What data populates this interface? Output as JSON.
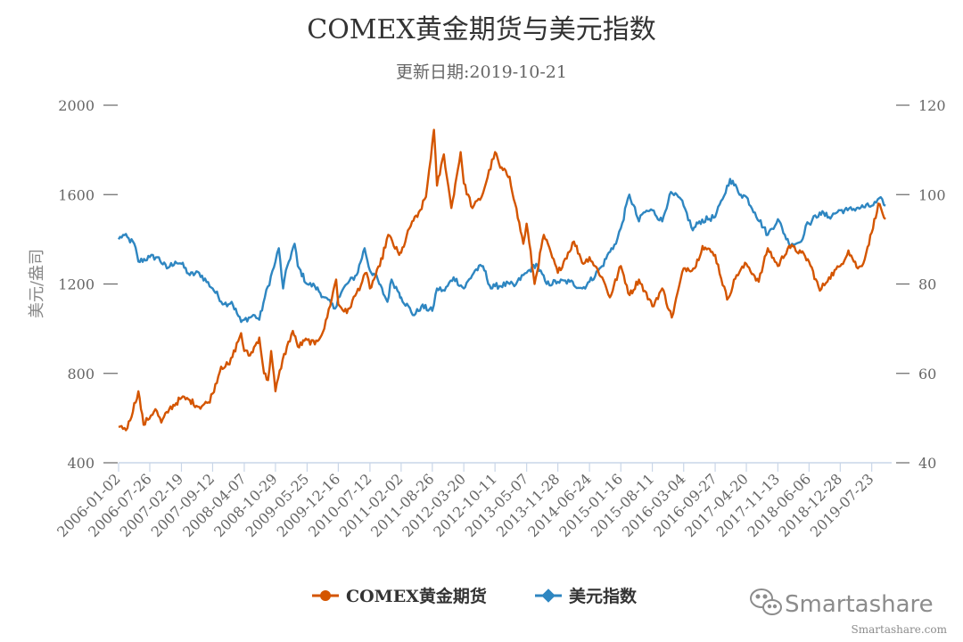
{
  "chart_data": {
    "type": "line",
    "title": "COMEX黄金期货与美元指数",
    "subtitle": "更新日期:2019-10-21",
    "y_left_label": "美元/盎司",
    "y_left_range": [
      400,
      2000
    ],
    "y_left_ticks": [
      "2000",
      "1600",
      "1200",
      "800",
      "400"
    ],
    "y_right_range": [
      40,
      120
    ],
    "y_right_ticks": [
      "120",
      "100",
      "80",
      "60",
      "40"
    ],
    "x_range": [
      "2006-01-02",
      "2019-10-21"
    ],
    "x_tick_labels": [
      "2006-01-02",
      "2006-07-26",
      "2007-02-19",
      "2007-09-12",
      "2008-04-07",
      "2008-10-29",
      "2009-05-25",
      "2009-12-16",
      "2010-07-12",
      "2011-02-02",
      "2011-08-26",
      "2012-03-20",
      "2012-10-11",
      "2013-05-07",
      "2013-11-28",
      "2014-06-24",
      "2015-01-16",
      "2015-08-11",
      "2016-03-04",
      "2016-09-27",
      "2017-04-20",
      "2017-11-13",
      "2018-06-06",
      "2018-12-28",
      "2019-07-23"
    ],
    "grid": false,
    "legend_position": "bottom",
    "series": [
      {
        "name": "COMEX黄金期货",
        "axis": "left",
        "color": "#d45500",
        "points": [
          [
            "2006-01-02",
            560
          ],
          [
            "2006-03-01",
            555
          ],
          [
            "2006-05-12",
            720
          ],
          [
            "2006-06-15",
            570
          ],
          [
            "2006-09-01",
            640
          ],
          [
            "2006-10-10",
            580
          ],
          [
            "2006-12-01",
            640
          ],
          [
            "2007-02-19",
            690
          ],
          [
            "2007-04-15",
            680
          ],
          [
            "2007-06-15",
            650
          ],
          [
            "2007-08-15",
            670
          ],
          [
            "2007-09-12",
            710
          ],
          [
            "2007-11-07",
            830
          ],
          [
            "2008-01-01",
            840
          ],
          [
            "2008-03-17",
            980
          ],
          [
            "2008-04-07",
            900
          ],
          [
            "2008-05-15",
            880
          ],
          [
            "2008-07-15",
            960
          ],
          [
            "2008-08-15",
            800
          ],
          [
            "2008-09-10",
            770
          ],
          [
            "2008-10-01",
            900
          ],
          [
            "2008-10-29",
            720
          ],
          [
            "2008-12-15",
            860
          ],
          [
            "2009-02-20",
            990
          ],
          [
            "2009-03-25",
            920
          ],
          [
            "2009-05-25",
            950
          ],
          [
            "2009-07-15",
            930
          ],
          [
            "2009-09-15",
            1000
          ],
          [
            "2009-12-02",
            1220
          ],
          [
            "2009-12-16",
            1110
          ],
          [
            "2010-02-10",
            1070
          ],
          [
            "2010-04-15",
            1160
          ],
          [
            "2010-06-20",
            1250
          ],
          [
            "2010-07-12",
            1180
          ],
          [
            "2010-09-15",
            1280
          ],
          [
            "2010-11-09",
            1420
          ],
          [
            "2011-01-20",
            1330
          ],
          [
            "2011-02-02",
            1340
          ],
          [
            "2011-04-15",
            1480
          ],
          [
            "2011-05-20",
            1500
          ],
          [
            "2011-07-15",
            1590
          ],
          [
            "2011-08-26",
            1830
          ],
          [
            "2011-09-06",
            1890
          ],
          [
            "2011-09-26",
            1640
          ],
          [
            "2011-11-10",
            1780
          ],
          [
            "2011-12-29",
            1540
          ],
          [
            "2012-02-28",
            1790
          ],
          [
            "2012-03-20",
            1650
          ],
          [
            "2012-05-16",
            1540
          ],
          [
            "2012-07-15",
            1590
          ],
          [
            "2012-10-11",
            1790
          ],
          [
            "2012-11-15",
            1720
          ],
          [
            "2013-01-15",
            1680
          ],
          [
            "2013-02-20",
            1560
          ],
          [
            "2013-04-15",
            1380
          ],
          [
            "2013-05-07",
            1470
          ],
          [
            "2013-06-28",
            1200
          ],
          [
            "2013-08-28",
            1420
          ],
          [
            "2013-11-28",
            1250
          ],
          [
            "2014-03-14",
            1390
          ],
          [
            "2014-05-15",
            1290
          ],
          [
            "2014-06-24",
            1320
          ],
          [
            "2014-09-15",
            1230
          ],
          [
            "2014-11-05",
            1140
          ],
          [
            "2015-01-16",
            1280
          ],
          [
            "2015-03-15",
            1150
          ],
          [
            "2015-05-15",
            1220
          ],
          [
            "2015-08-11",
            1100
          ],
          [
            "2015-10-15",
            1180
          ],
          [
            "2015-12-17",
            1050
          ],
          [
            "2016-03-04",
            1270
          ],
          [
            "2016-05-15",
            1270
          ],
          [
            "2016-07-06",
            1370
          ],
          [
            "2016-09-27",
            1330
          ],
          [
            "2016-12-15",
            1130
          ],
          [
            "2017-02-15",
            1240
          ],
          [
            "2017-04-20",
            1290
          ],
          [
            "2017-07-10",
            1210
          ],
          [
            "2017-09-08",
            1360
          ],
          [
            "2017-11-13",
            1280
          ],
          [
            "2018-01-25",
            1370
          ],
          [
            "2018-04-15",
            1340
          ],
          [
            "2018-06-06",
            1300
          ],
          [
            "2018-08-16",
            1170
          ],
          [
            "2018-10-15",
            1230
          ],
          [
            "2018-12-28",
            1280
          ],
          [
            "2019-02-20",
            1350
          ],
          [
            "2019-04-23",
            1270
          ],
          [
            "2019-05-20",
            1280
          ],
          [
            "2019-07-23",
            1430
          ],
          [
            "2019-09-04",
            1560
          ],
          [
            "2019-10-21",
            1490
          ]
        ]
      },
      {
        "name": "美元指数",
        "axis": "right",
        "color": "#2e86c1",
        "points": [
          [
            "2006-01-02",
            90
          ],
          [
            "2006-02-01",
            91
          ],
          [
            "2006-04-15",
            89
          ],
          [
            "2006-05-12",
            85
          ],
          [
            "2006-07-26",
            86
          ],
          [
            "2006-09-15",
            86
          ],
          [
            "2006-11-15",
            83.5
          ],
          [
            "2007-01-10",
            85
          ],
          [
            "2007-02-19",
            84.5
          ],
          [
            "2007-04-15",
            82
          ],
          [
            "2007-06-15",
            82.5
          ],
          [
            "2007-09-12",
            79
          ],
          [
            "2007-11-26",
            75.5
          ],
          [
            "2008-01-15",
            76
          ],
          [
            "2008-03-17",
            71.5
          ],
          [
            "2008-04-07",
            72
          ],
          [
            "2008-06-15",
            73
          ],
          [
            "2008-07-15",
            72
          ],
          [
            "2008-08-20",
            77
          ],
          [
            "2008-10-29",
            85
          ],
          [
            "2008-11-20",
            88
          ],
          [
            "2008-12-18",
            79
          ],
          [
            "2009-01-15",
            84
          ],
          [
            "2009-03-04",
            89
          ],
          [
            "2009-03-25",
            84
          ],
          [
            "2009-05-25",
            80
          ],
          [
            "2009-07-15",
            79.5
          ],
          [
            "2009-09-15",
            77
          ],
          [
            "2009-11-25",
            74.5
          ],
          [
            "2009-12-16",
            77
          ],
          [
            "2010-02-10",
            80
          ],
          [
            "2010-04-15",
            82
          ],
          [
            "2010-06-07",
            88
          ],
          [
            "2010-07-12",
            83
          ],
          [
            "2010-08-15",
            82
          ],
          [
            "2010-11-04",
            76
          ],
          [
            "2010-12-01",
            81
          ],
          [
            "2011-01-20",
            78
          ],
          [
            "2011-02-02",
            77
          ],
          [
            "2011-04-29",
            73
          ],
          [
            "2011-06-15",
            75
          ],
          [
            "2011-08-26",
            74
          ],
          [
            "2011-09-26",
            79
          ],
          [
            "2011-11-15",
            78.5
          ],
          [
            "2012-01-13",
            81.5
          ],
          [
            "2012-03-20",
            79
          ],
          [
            "2012-06-01",
            83
          ],
          [
            "2012-07-24",
            84
          ],
          [
            "2012-09-14",
            79
          ],
          [
            "2012-10-11",
            79.5
          ],
          [
            "2013-01-15",
            80
          ],
          [
            "2013-02-15",
            79.5
          ],
          [
            "2013-04-15",
            82
          ],
          [
            "2013-05-07",
            82.5
          ],
          [
            "2013-07-09",
            84.5
          ],
          [
            "2013-09-15",
            80
          ],
          [
            "2013-11-28",
            80.5
          ],
          [
            "2014-02-15",
            80.5
          ],
          [
            "2014-05-08",
            79
          ],
          [
            "2014-06-24",
            80.5
          ],
          [
            "2014-09-15",
            84
          ],
          [
            "2014-11-15",
            88
          ],
          [
            "2014-12-15",
            89
          ],
          [
            "2015-01-16",
            92.5
          ],
          [
            "2015-03-13",
            100
          ],
          [
            "2015-05-15",
            94
          ],
          [
            "2015-06-15",
            96
          ],
          [
            "2015-08-11",
            96.5
          ],
          [
            "2015-10-15",
            94
          ],
          [
            "2015-12-02",
            100
          ],
          [
            "2016-01-29",
            99.5
          ],
          [
            "2016-03-04",
            97.5
          ],
          [
            "2016-05-03",
            92
          ],
          [
            "2016-06-15",
            94
          ],
          [
            "2016-09-27",
            95
          ],
          [
            "2016-11-15",
            99
          ],
          [
            "2017-01-03",
            103.5
          ],
          [
            "2017-03-15",
            100
          ],
          [
            "2017-04-20",
            99.5
          ],
          [
            "2017-06-15",
            96
          ],
          [
            "2017-09-08",
            91
          ],
          [
            "2017-11-13",
            94.5
          ],
          [
            "2018-01-25",
            89
          ],
          [
            "2018-02-15",
            89
          ],
          [
            "2018-04-15",
            89.5
          ],
          [
            "2018-05-15",
            93
          ],
          [
            "2018-06-06",
            93.5
          ],
          [
            "2018-08-15",
            96
          ],
          [
            "2018-10-15",
            95
          ],
          [
            "2018-12-28",
            96.5
          ],
          [
            "2019-02-15",
            96.5
          ],
          [
            "2019-04-15",
            97
          ],
          [
            "2019-07-23",
            97.5
          ],
          [
            "2019-09-30",
            99
          ],
          [
            "2019-10-21",
            97.5
          ]
        ]
      }
    ]
  },
  "watermark": {
    "brand": "Smartashare",
    "url": "Smartashare.com",
    "icon": "wechat-icon"
  }
}
